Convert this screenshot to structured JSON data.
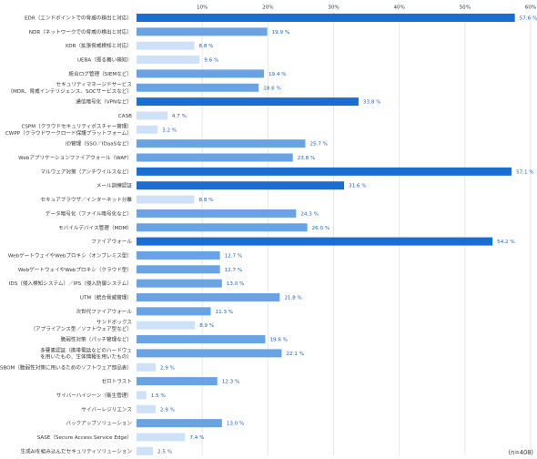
{
  "chart_data": {
    "type": "bar",
    "orientation": "horizontal",
    "title": "",
    "xlabel": "",
    "ylabel": "",
    "xlim": [
      0,
      60
    ],
    "ticks": [
      "10%",
      "20%",
      "30%",
      "40%",
      "50%",
      "60%"
    ],
    "tick_values": [
      10,
      20,
      30,
      40,
      50,
      60
    ],
    "grid": true,
    "note": "(n=408)",
    "value_suffix": " %",
    "colors": {
      "dark": "#1a6dd1",
      "mid": "#6aa3e3",
      "light": "#cfe1f7"
    },
    "categories": [
      [
        "EDR（エンドポイントでの脅威の検出と対応）"
      ],
      [
        "NDR（ネットワークでの脅威の検出と対応）"
      ],
      [
        "XDR（拡張脅威検知と対応）"
      ],
      [
        "UEBA（振る舞い検知）"
      ],
      [
        "統合ログ管理（SIEMなど）"
      ],
      [
        "セキュリティマネージドサービス",
        "（MDR、脅威インテリジェンス、SOCサービスなど）"
      ],
      [
        "通信暗号化（VPNなど）"
      ],
      [
        "CASB"
      ],
      [
        "CSPM（クラウドセキュリティポスチャー管理）",
        "CWPP（クラウドワークロード保護プラットフォーム）"
      ],
      [
        "ID管理（SSO／IDaaSなど）"
      ],
      [
        "Webアプリケーションファイアウォール（WAF）"
      ],
      [
        "マルウェア対策（アンチウイルスなど）"
      ],
      [
        "メール訓練認証"
      ],
      [
        "セキュアブラウザ／インターネット分離"
      ],
      [
        "データ暗号化（ファイル暗号化など）"
      ],
      [
        "モバイルデバイス管理（MDM）"
      ],
      [
        "ファイアウォール"
      ],
      [
        "WebゲートウェイやWebプロキシ（オンプレミス型）"
      ],
      [
        "WebゲートウェイやWebプロキシ（クラウド型）"
      ],
      [
        "IDS（侵入検知システム）／IPS（侵入防御システム）"
      ],
      [
        "UTM（統合脅威管理）"
      ],
      [
        "次世代ファイアウォール"
      ],
      [
        "サンドボックス",
        "（アプライアンス型／ソフトウェア型など）"
      ],
      [
        "脆弱性対策（パッチ管理など）"
      ],
      [
        "多要素認証（携帯電話などのハードウェ",
        "を用いたもの、生体情報を用いたもの）"
      ],
      [
        "SBOM（脆弱性対策に用いるためのソフトウェア部品表）"
      ],
      [
        "ゼロトラスト"
      ],
      [
        "サイバーハイジーン（衛生管理）"
      ],
      [
        "サイバーレジリエンス"
      ],
      [
        "バックアップソリューション"
      ],
      [
        "SASE（Secure Access Service Edge）"
      ],
      [
        "生成AIを組み込んだセキュリティソリューション"
      ]
    ],
    "values": [
      57.6,
      19.9,
      8.8,
      9.6,
      19.4,
      18.6,
      33.8,
      4.7,
      3.2,
      25.7,
      23.8,
      57.1,
      31.6,
      8.8,
      24.3,
      26.0,
      54.2,
      12.7,
      12.7,
      13.0,
      21.8,
      11.3,
      8.9,
      19.6,
      22.1,
      2.9,
      12.3,
      1.5,
      2.9,
      13.0,
      7.4,
      2.5
    ],
    "value_labels": [
      "57.6 %",
      "19.9 %",
      "8.8 %",
      "9.6 %",
      "19.4 %",
      "18.6 %",
      "33.8 %",
      "4.7 %",
      "3.2 %",
      "25.7 %",
      "23.8 %",
      "57.1 %",
      "31.6 %",
      "8.8 %",
      "24.3 %",
      "26.0 %",
      "54.2 %",
      "12.7 %",
      "12.7 %",
      "13.0 %",
      "21.8 %",
      "11.3 %",
      "8.9 %",
      "19.6 %",
      "22.1 %",
      "2.9 %",
      "12.3 %",
      "1.5 %",
      "2.9 %",
      "13.0 %",
      "7.4 %",
      "2.5 %"
    ]
  }
}
